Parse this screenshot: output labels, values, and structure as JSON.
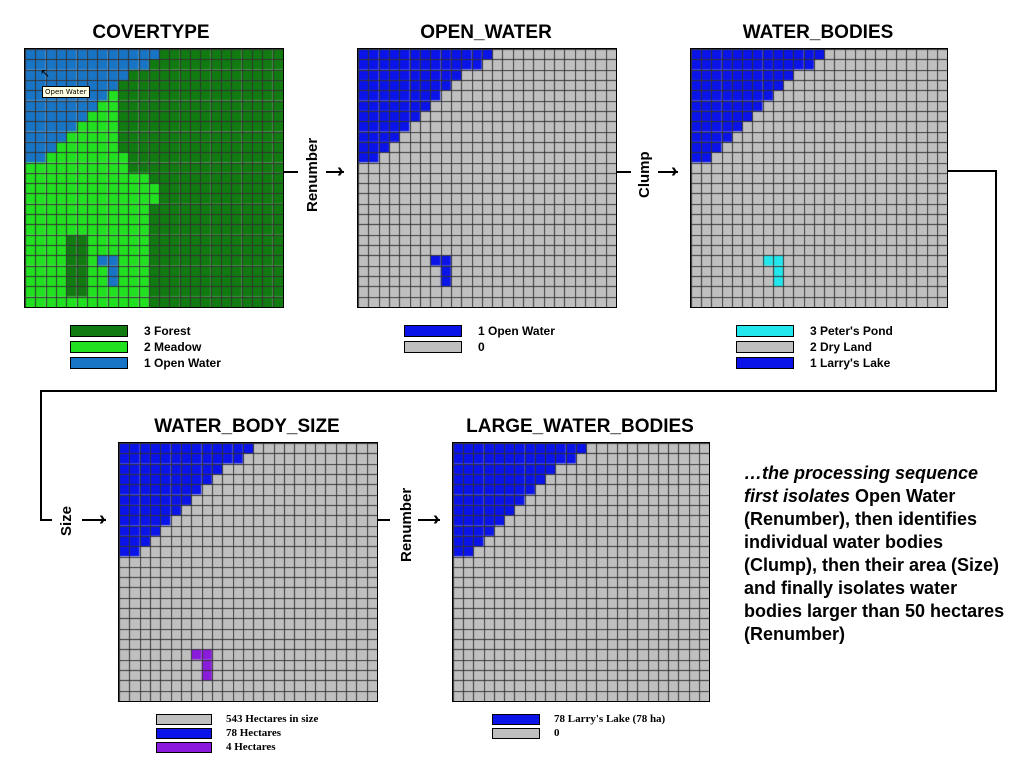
{
  "panels": [
    {
      "id": "covertype",
      "title": "COVERTYPE",
      "legend": [
        {
          "label": "3 Forest",
          "color": "#117a11"
        },
        {
          "label": "2 Meadow",
          "color": "#20e020"
        },
        {
          "label": "1 Open Water",
          "color": "#1874c4"
        }
      ],
      "tooltip": "Open Water"
    },
    {
      "id": "open_water",
      "title": "OPEN_WATER",
      "legend": [
        {
          "label": "1 Open Water",
          "color": "#0a14e8"
        },
        {
          "label": "0",
          "color": "#bfbfbf"
        }
      ]
    },
    {
      "id": "water_bodies",
      "title": "WATER_BODIES",
      "legend": [
        {
          "label": "3 Peter's Pond",
          "color": "#22e8ee"
        },
        {
          "label": "2 Dry Land",
          "color": "#bfbfbf"
        },
        {
          "label": "1 Larry's Lake",
          "color": "#0a14e8"
        }
      ]
    },
    {
      "id": "water_body_size",
      "title": "WATER_BODY_SIZE",
      "legend": [
        {
          "label": "543 Hectares in size",
          "color": "#bfbfbf"
        },
        {
          "label": "78 Hectares",
          "color": "#0a14e8"
        },
        {
          "label": "4 Hectares",
          "color": "#8a1adc"
        }
      ]
    },
    {
      "id": "large_water_bodies",
      "title": "LARGE_WATER_BODIES",
      "legend": [
        {
          "label": "78 Larry's Lake (78 ha)",
          "color": "#0a14e8"
        },
        {
          "label": "0",
          "color": "#bfbfbf"
        }
      ]
    }
  ],
  "operations": {
    "op1": "Renumber",
    "op2": "Clump",
    "op3": "Size",
    "op4": "Renumber"
  },
  "caption": {
    "p1": "…the processing sequence first isolates ",
    "p2": "Open Water",
    "p3": " (Renumber), then identifies individual water bodies (Clump), then their area (Size) and finally isolates water bodies larger than 50 hectares (Renumber)"
  },
  "colors": {
    "forest": "#117a11",
    "meadow": "#20e020",
    "cover_water": "#1874c4",
    "water": "#0a14e8",
    "land": "#bfbfbf",
    "pond": "#22e8ee",
    "small": "#8a1adc"
  }
}
